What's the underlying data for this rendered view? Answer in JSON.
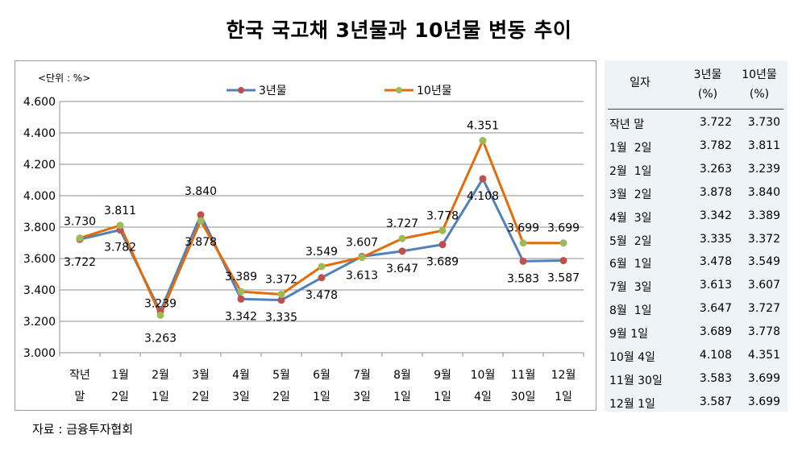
{
  "title": "한국 국고채 3년물과 10년물 변동 추이",
  "source": "자료 : 금융투자협회",
  "chart_data": {
    "type": "line",
    "unit_note": "<단위 : %>",
    "categories": [
      [
        "작년",
        "말"
      ],
      [
        "1월",
        "2일"
      ],
      [
        "2월",
        "1일"
      ],
      [
        "3월",
        "2일"
      ],
      [
        "4월",
        "3일"
      ],
      [
        "5월",
        "2일"
      ],
      [
        "6월",
        "1일"
      ],
      [
        "7월",
        "3일"
      ],
      [
        "8월",
        "1일"
      ],
      [
        "9월",
        "1일"
      ],
      [
        "10월",
        "4일"
      ],
      [
        "11월",
        "30일"
      ],
      [
        "12월",
        "1일"
      ]
    ],
    "series": [
      {
        "name": "3년물",
        "line_color": "#4f81bd",
        "marker_color": "#c0504d",
        "values": [
          3.722,
          3.782,
          3.263,
          3.878,
          3.342,
          3.335,
          3.478,
          3.613,
          3.647,
          3.689,
          4.108,
          3.583,
          3.587
        ],
        "labels": [
          "3.722",
          "3.782",
          "3.263",
          "3.878",
          "3.342",
          "3.335",
          "3.478",
          "3.613",
          "3.647",
          "3.689",
          "4.108",
          "3.583",
          "3.587"
        ]
      },
      {
        "name": "10년물",
        "line_color": "#e36c09",
        "marker_color": "#9bbb59",
        "values": [
          3.73,
          3.811,
          3.239,
          3.84,
          3.389,
          3.372,
          3.549,
          3.607,
          3.727,
          3.778,
          4.351,
          3.699,
          3.699
        ],
        "labels": [
          "3.730",
          "3.811",
          "3.239",
          "3.840",
          "3.389",
          "3.372",
          "3.549",
          "3.607",
          "3.727",
          "3.778",
          "4.351",
          "3.699",
          "3.699"
        ]
      }
    ],
    "ylim": [
      3.0,
      4.6
    ],
    "yticks": [
      "3.000",
      "3.200",
      "3.400",
      "3.600",
      "3.800",
      "4.000",
      "4.200",
      "4.400",
      "4.600"
    ],
    "grid": true,
    "legend": "top-center"
  },
  "table": {
    "headers": {
      "date": "일자",
      "v3_line1": "3년물",
      "v3_line2": "(%)",
      "v10_line1": "10년물",
      "v10_line2": "(%)"
    },
    "rows": [
      {
        "date": "작년 말",
        "v3": "3.722",
        "v10": "3.730"
      },
      {
        "date": "1월  2일",
        "v3": "3.782",
        "v10": "3.811"
      },
      {
        "date": "2월  1일",
        "v3": "3.263",
        "v10": "3.239"
      },
      {
        "date": "3월  2일",
        "v3": "3.878",
        "v10": "3.840"
      },
      {
        "date": "4월  3일",
        "v3": "3.342",
        "v10": "3.389"
      },
      {
        "date": "5월  2일",
        "v3": "3.335",
        "v10": "3.372"
      },
      {
        "date": "6월  1일",
        "v3": "3.478",
        "v10": "3.549"
      },
      {
        "date": "7월  3일",
        "v3": "3.613",
        "v10": "3.607"
      },
      {
        "date": "8월  1일",
        "v3": "3.647",
        "v10": "3.727"
      },
      {
        "date": "9월 1일",
        "v3": "3.689",
        "v10": "3.778"
      },
      {
        "date": "10월 4일",
        "v3": "4.108",
        "v10": "4.351"
      },
      {
        "date": "11월 30일",
        "v3": "3.583",
        "v10": "3.699"
      },
      {
        "date": "12월 1일",
        "v3": "3.587",
        "v10": "3.699"
      }
    ]
  }
}
